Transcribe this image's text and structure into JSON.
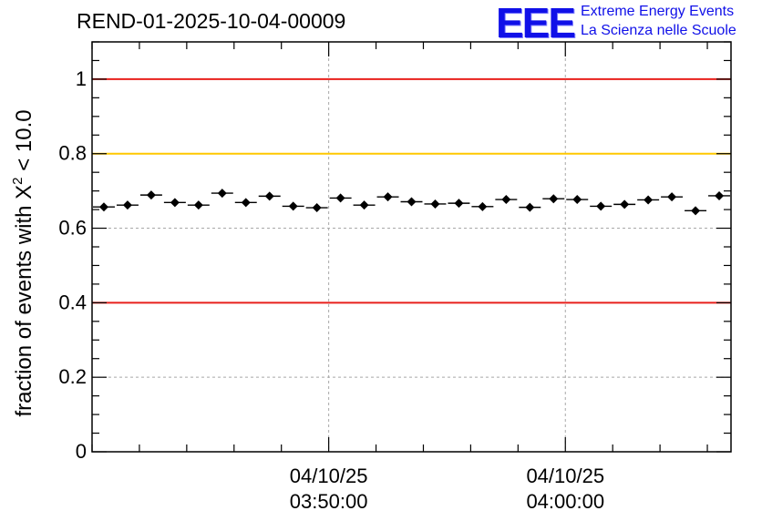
{
  "header": {
    "run_title": "REND-01-2025-10-04-00009"
  },
  "logo": {
    "mark": "EEE",
    "line1": "Extreme Energy Events",
    "line2": "La Scienza nelle Scuole",
    "color": "#1010e8"
  },
  "chart_data": {
    "type": "scatter",
    "title": "REND-01-2025-10-04-00009",
    "ylabel_prefix": "fraction of events with ",
    "ylabel_symbol": "X",
    "ylabel_exponent": "2",
    "ylabel_suffix": " < 10.0",
    "xlabel": "",
    "ylim": [
      0,
      1.1
    ],
    "yticks": [
      0,
      0.2,
      0.4,
      0.6,
      0.8,
      1
    ],
    "ytick_labels": [
      "0",
      "0.2",
      "0.4",
      "0.6",
      "0.8",
      "1"
    ],
    "x_range_minutes": [
      -10.0,
      17.0
    ],
    "xticks": [
      {
        "minute": 0,
        "date": "04/10/25",
        "time": "03:50:00"
      },
      {
        "minute": 10,
        "date": "04/10/25",
        "time": "04:00:00"
      }
    ],
    "x_minor_tick_step_minutes": 2,
    "grid": true,
    "reference_lines": [
      {
        "y": 1.0,
        "color": "#e8201c"
      },
      {
        "y": 0.8,
        "color": "#ffc800"
      },
      {
        "y": 0.4,
        "color": "#e8201c"
      }
    ],
    "bin_width_minutes": 1,
    "series": [
      {
        "name": "fraction",
        "x_minutes": [
          -9.5,
          -8.5,
          -7.5,
          -6.5,
          -5.5,
          -4.5,
          -3.5,
          -2.5,
          -1.5,
          -0.5,
          0.5,
          1.5,
          2.5,
          3.5,
          4.5,
          5.5,
          6.5,
          7.5,
          8.5,
          9.5,
          10.5,
          11.5,
          12.5,
          13.5,
          14.5,
          15.5,
          16.5
        ],
        "values": [
          0.657,
          0.662,
          0.689,
          0.669,
          0.662,
          0.694,
          0.669,
          0.686,
          0.659,
          0.655,
          0.681,
          0.662,
          0.684,
          0.671,
          0.665,
          0.667,
          0.658,
          0.677,
          0.656,
          0.679,
          0.677,
          0.659,
          0.664,
          0.676,
          0.684,
          0.647,
          0.687
        ]
      }
    ]
  }
}
